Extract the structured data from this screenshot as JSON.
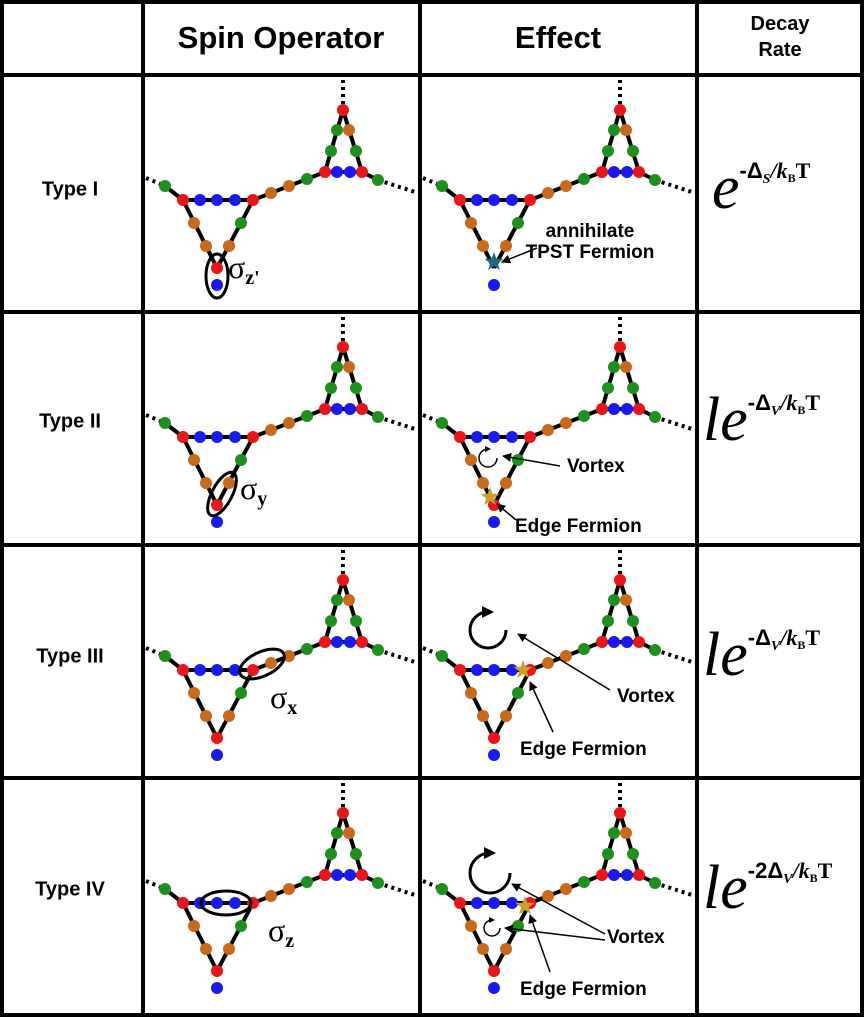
{
  "header": {
    "spin_operator": "Spin Operator",
    "effect": "Effect",
    "decay_rate": [
      "Decay",
      "Rate"
    ]
  },
  "rows": [
    {
      "label": "Type I",
      "operator": {
        "symbol": "σ",
        "subscript": "z'"
      },
      "effect": [
        "annihilate",
        "TPST Fermion"
      ],
      "rate": {
        "base": "e",
        "exp": "-Δ",
        "sub": "S",
        "slash": "/k",
        "sub2": "B",
        "tail": "T"
      }
    },
    {
      "label": "Type II",
      "operator": {
        "symbol": "σ",
        "subscript": "y"
      },
      "effect": [
        "Vortex",
        "Edge Fermion"
      ],
      "rate": {
        "prefix": "l",
        "base": "e",
        "exp": "-Δ",
        "sub": "V",
        "slash": "/k",
        "sub2": "B",
        "tail": "T"
      }
    },
    {
      "label": "Type III",
      "operator": {
        "symbol": "σ",
        "subscript": "x"
      },
      "effect": [
        "Vortex",
        "Edge Fermion"
      ],
      "rate": {
        "prefix": "l",
        "base": "e",
        "exp": "-Δ",
        "sub": "V",
        "slash": "/k",
        "sub2": "B",
        "tail": "T"
      }
    },
    {
      "label": "Type IV",
      "operator": {
        "symbol": "σ",
        "subscript": "z"
      },
      "effect": [
        "Vortex",
        "Edge Fermion"
      ],
      "rate": {
        "prefix": "l",
        "base": "e",
        "exp": "-2Δ",
        "sub": "V",
        "slash": "/k",
        "sub2": "B",
        "tail": "T"
      }
    }
  ]
}
